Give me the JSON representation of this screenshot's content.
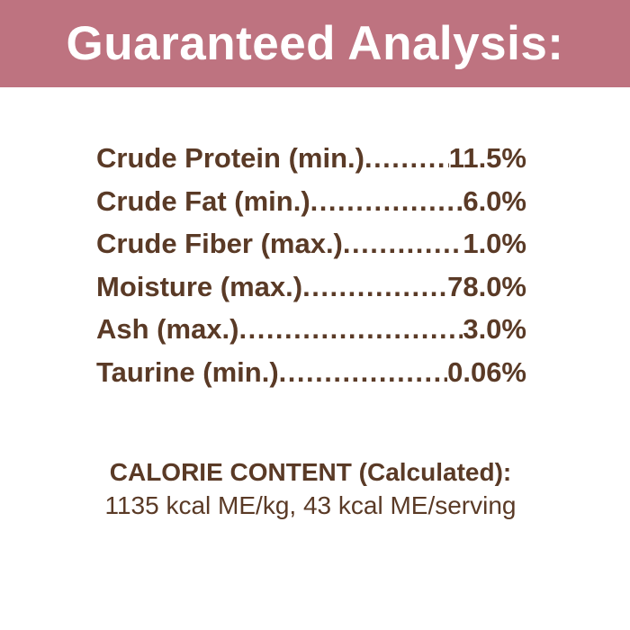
{
  "colors": {
    "header_bg": "#be7380",
    "header_text": "#ffffff",
    "body_text": "#5a3a26",
    "background": "#ffffff"
  },
  "header": {
    "title": "Guaranteed Analysis:"
  },
  "analysis": {
    "leader_dots": "............................................................",
    "rows": [
      {
        "label": "Crude Protein (min.)",
        "value": "11.5%"
      },
      {
        "label": "Crude Fat (min.)",
        "value": "6.0%"
      },
      {
        "label": "Crude Fiber (max.)",
        "value": "1.0%"
      },
      {
        "label": "Moisture (max.)",
        "value": "78.0%"
      },
      {
        "label": "Ash (max.)",
        "value": "3.0%"
      },
      {
        "label": "Taurine (min.)",
        "value": "0.06%"
      }
    ]
  },
  "calorie": {
    "heading": "CALORIE CONTENT (Calculated):",
    "detail": "1135 kcal ME/kg, 43 kcal ME/serving"
  }
}
